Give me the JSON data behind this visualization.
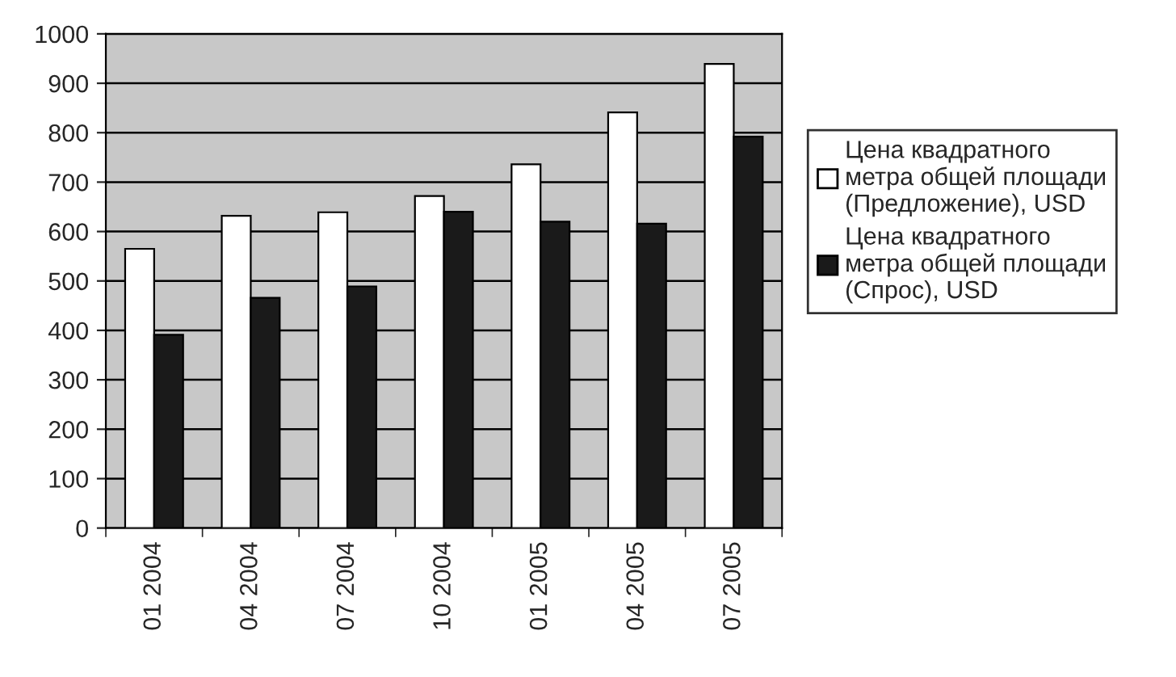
{
  "chart_data": {
    "type": "bar",
    "categories": [
      "01 2004",
      "04 2004",
      "07 2004",
      "10 2004",
      "01 2005",
      "04 2005",
      "07 2005"
    ],
    "series": [
      {
        "name": "Цена квадратного метра общей площади (Предложение), USD",
        "color": "#ffffff",
        "values": [
          565,
          632,
          639,
          672,
          736,
          841,
          939
        ]
      },
      {
        "name": "Цена квадратного метра общей площади (Спрос), USD",
        "color": "#1a1a1a",
        "values": [
          391,
          466,
          489,
          640,
          620,
          616,
          792
        ]
      }
    ],
    "ylim": [
      0,
      1000
    ],
    "yticks": [
      0,
      100,
      200,
      300,
      400,
      500,
      600,
      700,
      800,
      900,
      1000
    ],
    "grid": "y",
    "legend": "right"
  }
}
